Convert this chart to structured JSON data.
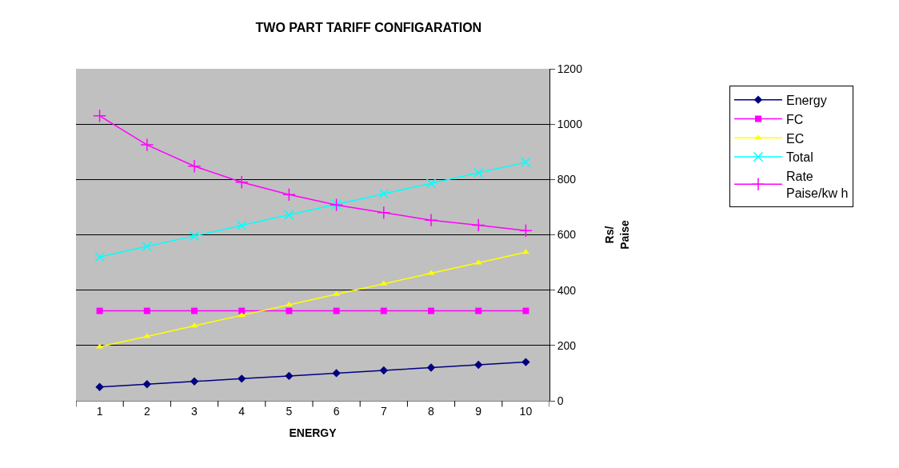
{
  "chart_data": {
    "type": "line",
    "title": "TWO PART TARIFF CONFIGARATION",
    "xlabel": "ENERGY",
    "ylabel": "Rs/\nPaise",
    "categories": [
      "1",
      "2",
      "3",
      "4",
      "5",
      "6",
      "7",
      "8",
      "9",
      "10"
    ],
    "series": [
      {
        "name": "Energy",
        "color": "#000080",
        "marker": "diamond",
        "values": [
          50,
          60,
          70,
          80,
          90,
          100,
          110,
          120,
          130,
          140
        ]
      },
      {
        "name": "FC",
        "color": "#ff00ff",
        "marker": "square",
        "values": [
          325,
          325,
          325,
          325,
          325,
          325,
          325,
          325,
          325,
          325
        ]
      },
      {
        "name": "EC",
        "color": "#ffff00",
        "marker": "triangle",
        "values": [
          195,
          233,
          271,
          309,
          347,
          385,
          423,
          461,
          499,
          537
        ]
      },
      {
        "name": "Total",
        "color": "#00ffff",
        "marker": "x",
        "values": [
          520,
          558,
          596,
          634,
          672,
          710,
          748,
          786,
          824,
          862
        ]
      },
      {
        "name": "Rate\nPaise/kw h",
        "color": "#ff00ff",
        "marker": "cross",
        "values": [
          1030,
          925,
          848,
          790,
          745,
          708,
          680,
          653,
          635,
          615
        ]
      }
    ],
    "ylim": [
      0,
      1200
    ],
    "yticks": [
      0,
      200,
      400,
      600,
      800,
      1000,
      1200
    ],
    "grid": "y",
    "legend": "right",
    "line_style": "solid"
  }
}
